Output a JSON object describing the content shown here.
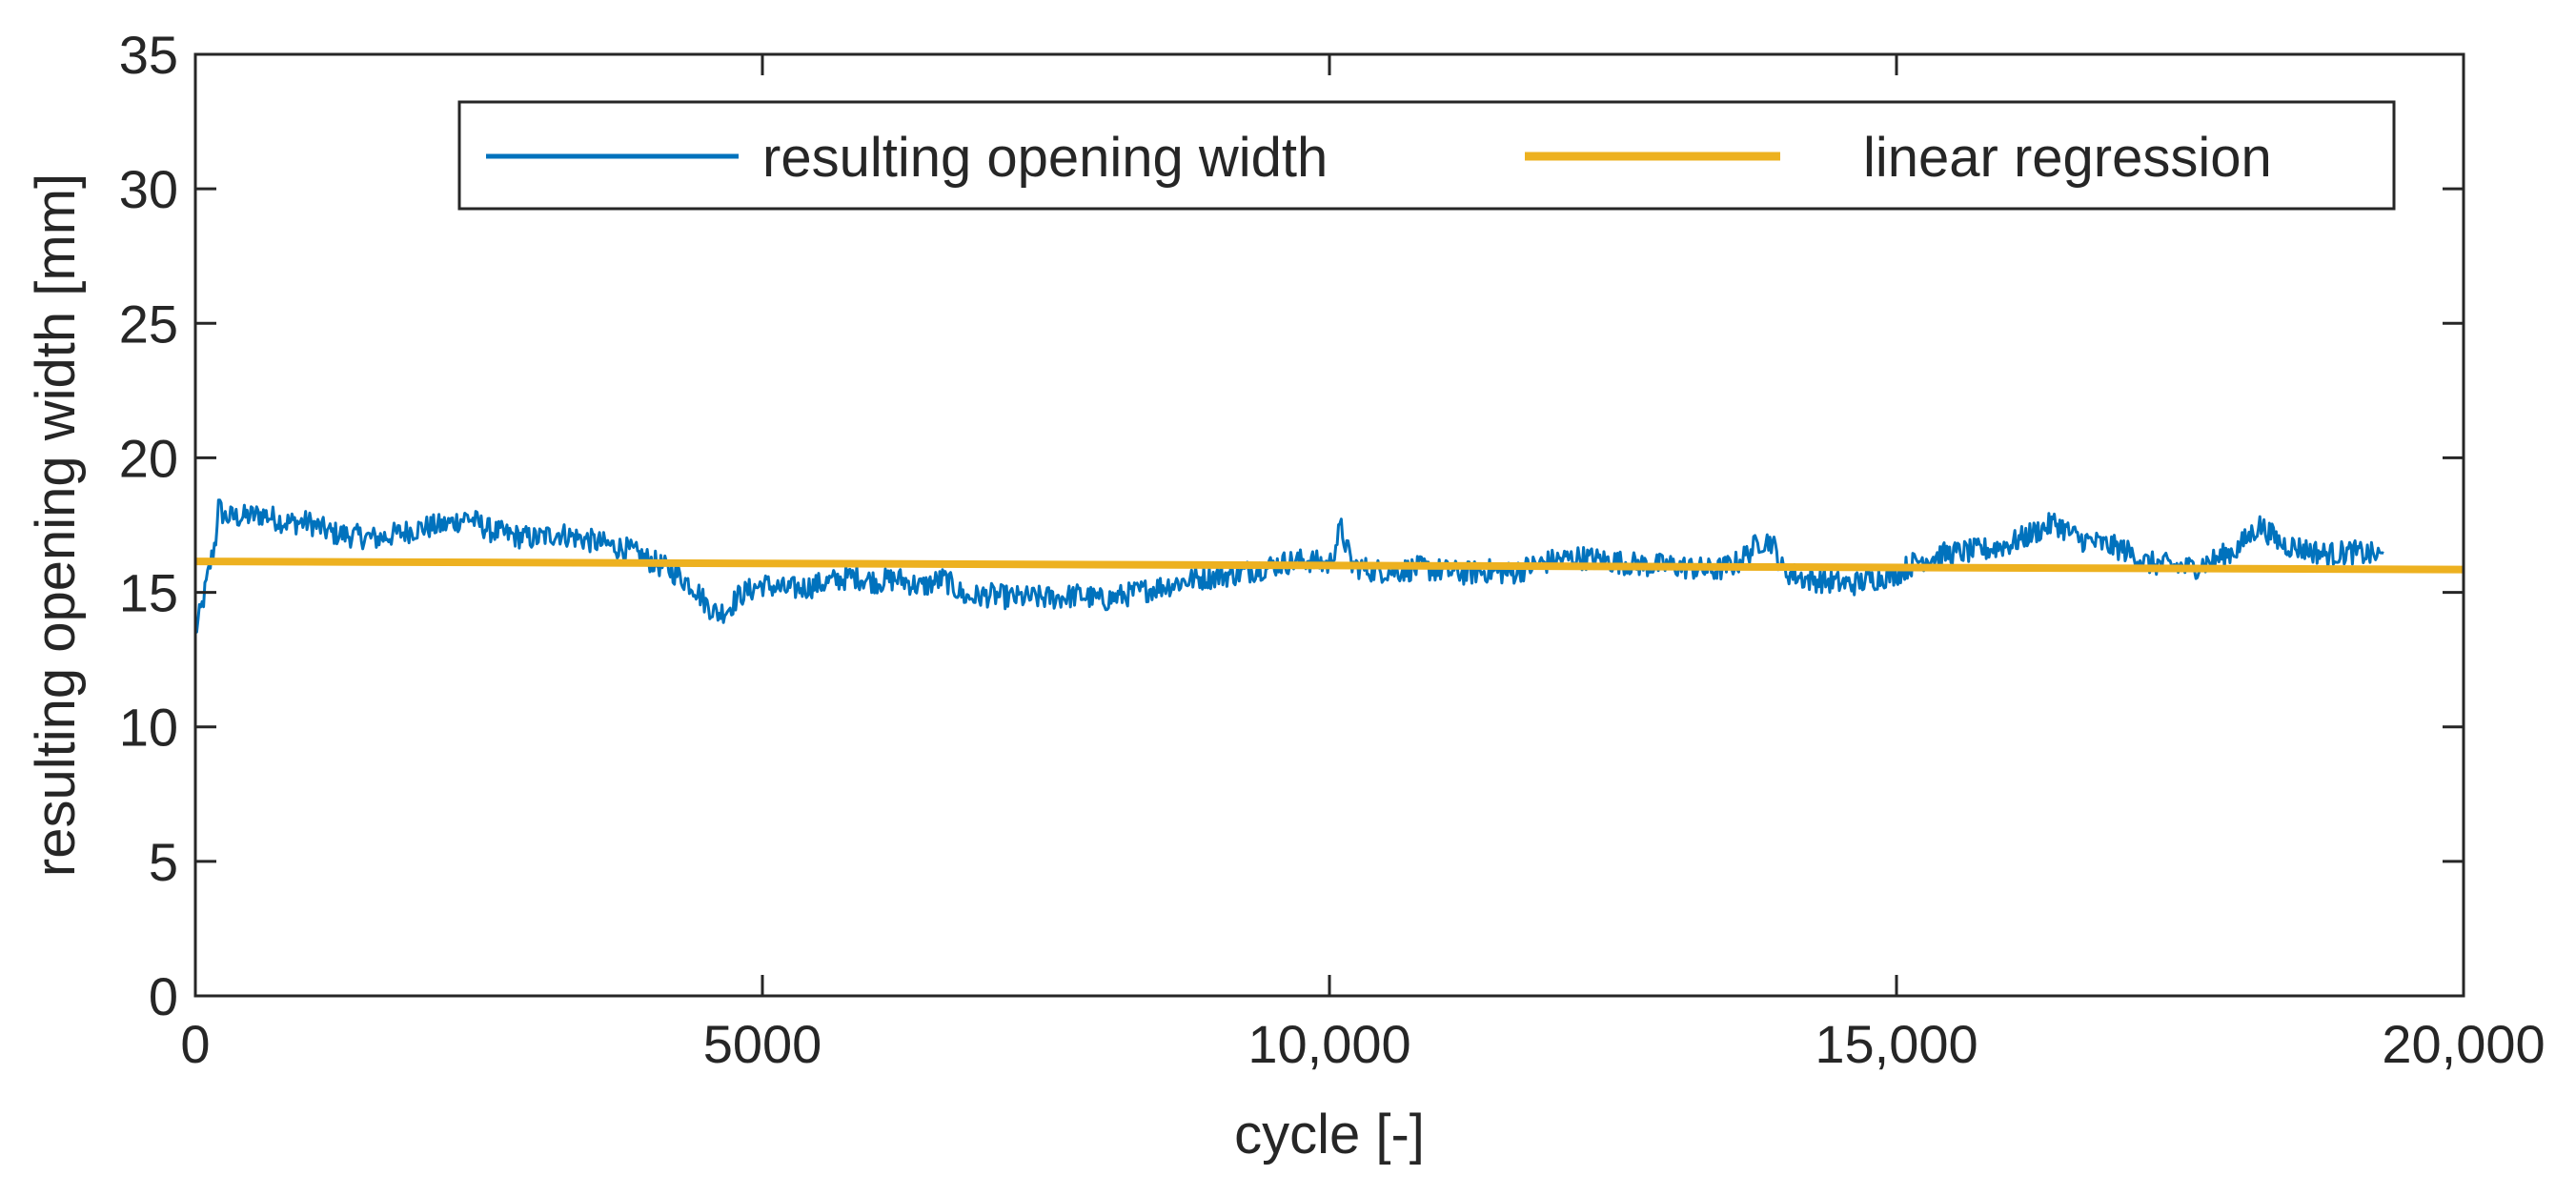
{
  "chart_data": {
    "type": "line",
    "title": "",
    "xlabel": "cycle [-]",
    "ylabel": "resulting opening width [mm]",
    "xlim": [
      0,
      20000
    ],
    "ylim": [
      0,
      35
    ],
    "grid": false,
    "legend_position": "top-center",
    "x_ticks": [
      {
        "value": 0,
        "label": "0"
      },
      {
        "value": 5000,
        "label": "5000"
      },
      {
        "value": 10000,
        "label": "10,000"
      },
      {
        "value": 15000,
        "label": "15,000"
      },
      {
        "value": 20000,
        "label": "20,000"
      }
    ],
    "y_ticks": [
      {
        "value": 0,
        "label": "0"
      },
      {
        "value": 5,
        "label": "5"
      },
      {
        "value": 10,
        "label": "10"
      },
      {
        "value": 15,
        "label": "15"
      },
      {
        "value": 20,
        "label": "20"
      },
      {
        "value": 25,
        "label": "25"
      },
      {
        "value": 30,
        "label": "30"
      },
      {
        "value": 35,
        "label": "35"
      }
    ],
    "series": [
      {
        "name": "resulting opening width",
        "color": "#0072BD",
        "style": "thin-line",
        "x": [
          0,
          60,
          120,
          180,
          200,
          260,
          400,
          600,
          800,
          1000,
          1200,
          1400,
          1600,
          1800,
          2000,
          2200,
          2400,
          2600,
          2800,
          3000,
          3200,
          3400,
          3600,
          3800,
          4000,
          4200,
          4400,
          4500,
          4600,
          4700,
          4800,
          5000,
          5200,
          5400,
          5600,
          5800,
          6000,
          6200,
          6400,
          6600,
          6800,
          7000,
          7200,
          7400,
          7600,
          7800,
          8000,
          8200,
          8400,
          8600,
          8800,
          9000,
          9200,
          9400,
          9600,
          9800,
          10000,
          10100,
          10200,
          10400,
          10600,
          10800,
          11000,
          11200,
          11400,
          11600,
          11800,
          12000,
          12200,
          12400,
          12600,
          12800,
          13000,
          13200,
          13400,
          13600,
          13800,
          13900,
          14000,
          14200,
          14400,
          14600,
          14800,
          15000,
          15200,
          15400,
          15600,
          15800,
          16000,
          16200,
          16400,
          16600,
          16800,
          17000,
          17200,
          17400,
          17600,
          17800,
          18000,
          18200,
          18400,
          18600,
          18800,
          19000,
          19200,
          19300
        ],
        "y": [
          13.5,
          14.5,
          15.8,
          17.0,
          18.2,
          17.8,
          17.8,
          17.9,
          17.6,
          17.6,
          17.2,
          17.1,
          17.0,
          17.2,
          17.4,
          17.5,
          17.8,
          17.3,
          17.1,
          17.0,
          17.2,
          17.0,
          16.8,
          16.6,
          16.2,
          15.8,
          15.2,
          14.6,
          14.2,
          14.4,
          14.9,
          15.3,
          15.1,
          15.2,
          15.4,
          15.6,
          15.4,
          15.5,
          15.2,
          15.5,
          14.8,
          14.9,
          14.8,
          14.8,
          14.8,
          14.9,
          14.7,
          14.9,
          15.1,
          15.3,
          15.5,
          15.6,
          15.7,
          15.9,
          16.1,
          16.2,
          16.0,
          17.4,
          16.0,
          15.8,
          15.8,
          15.9,
          15.8,
          15.7,
          15.8,
          15.7,
          16.0,
          16.2,
          16.3,
          16.2,
          16.1,
          16.0,
          16.0,
          15.9,
          15.8,
          16.1,
          16.9,
          16.9,
          15.8,
          15.5,
          15.4,
          15.3,
          15.5,
          15.7,
          16.2,
          16.4,
          16.5,
          16.6,
          16.8,
          17.2,
          17.6,
          17.0,
          16.8,
          16.6,
          16.1,
          16.0,
          15.9,
          16.2,
          16.6,
          17.5,
          16.8,
          16.6,
          16.4,
          16.5,
          16.4,
          16.3
        ]
      },
      {
        "name": "linear regression",
        "color": "#EDB120",
        "style": "thick-line",
        "x": [
          0,
          20000
        ],
        "y": [
          16.15,
          15.85
        ]
      }
    ]
  }
}
